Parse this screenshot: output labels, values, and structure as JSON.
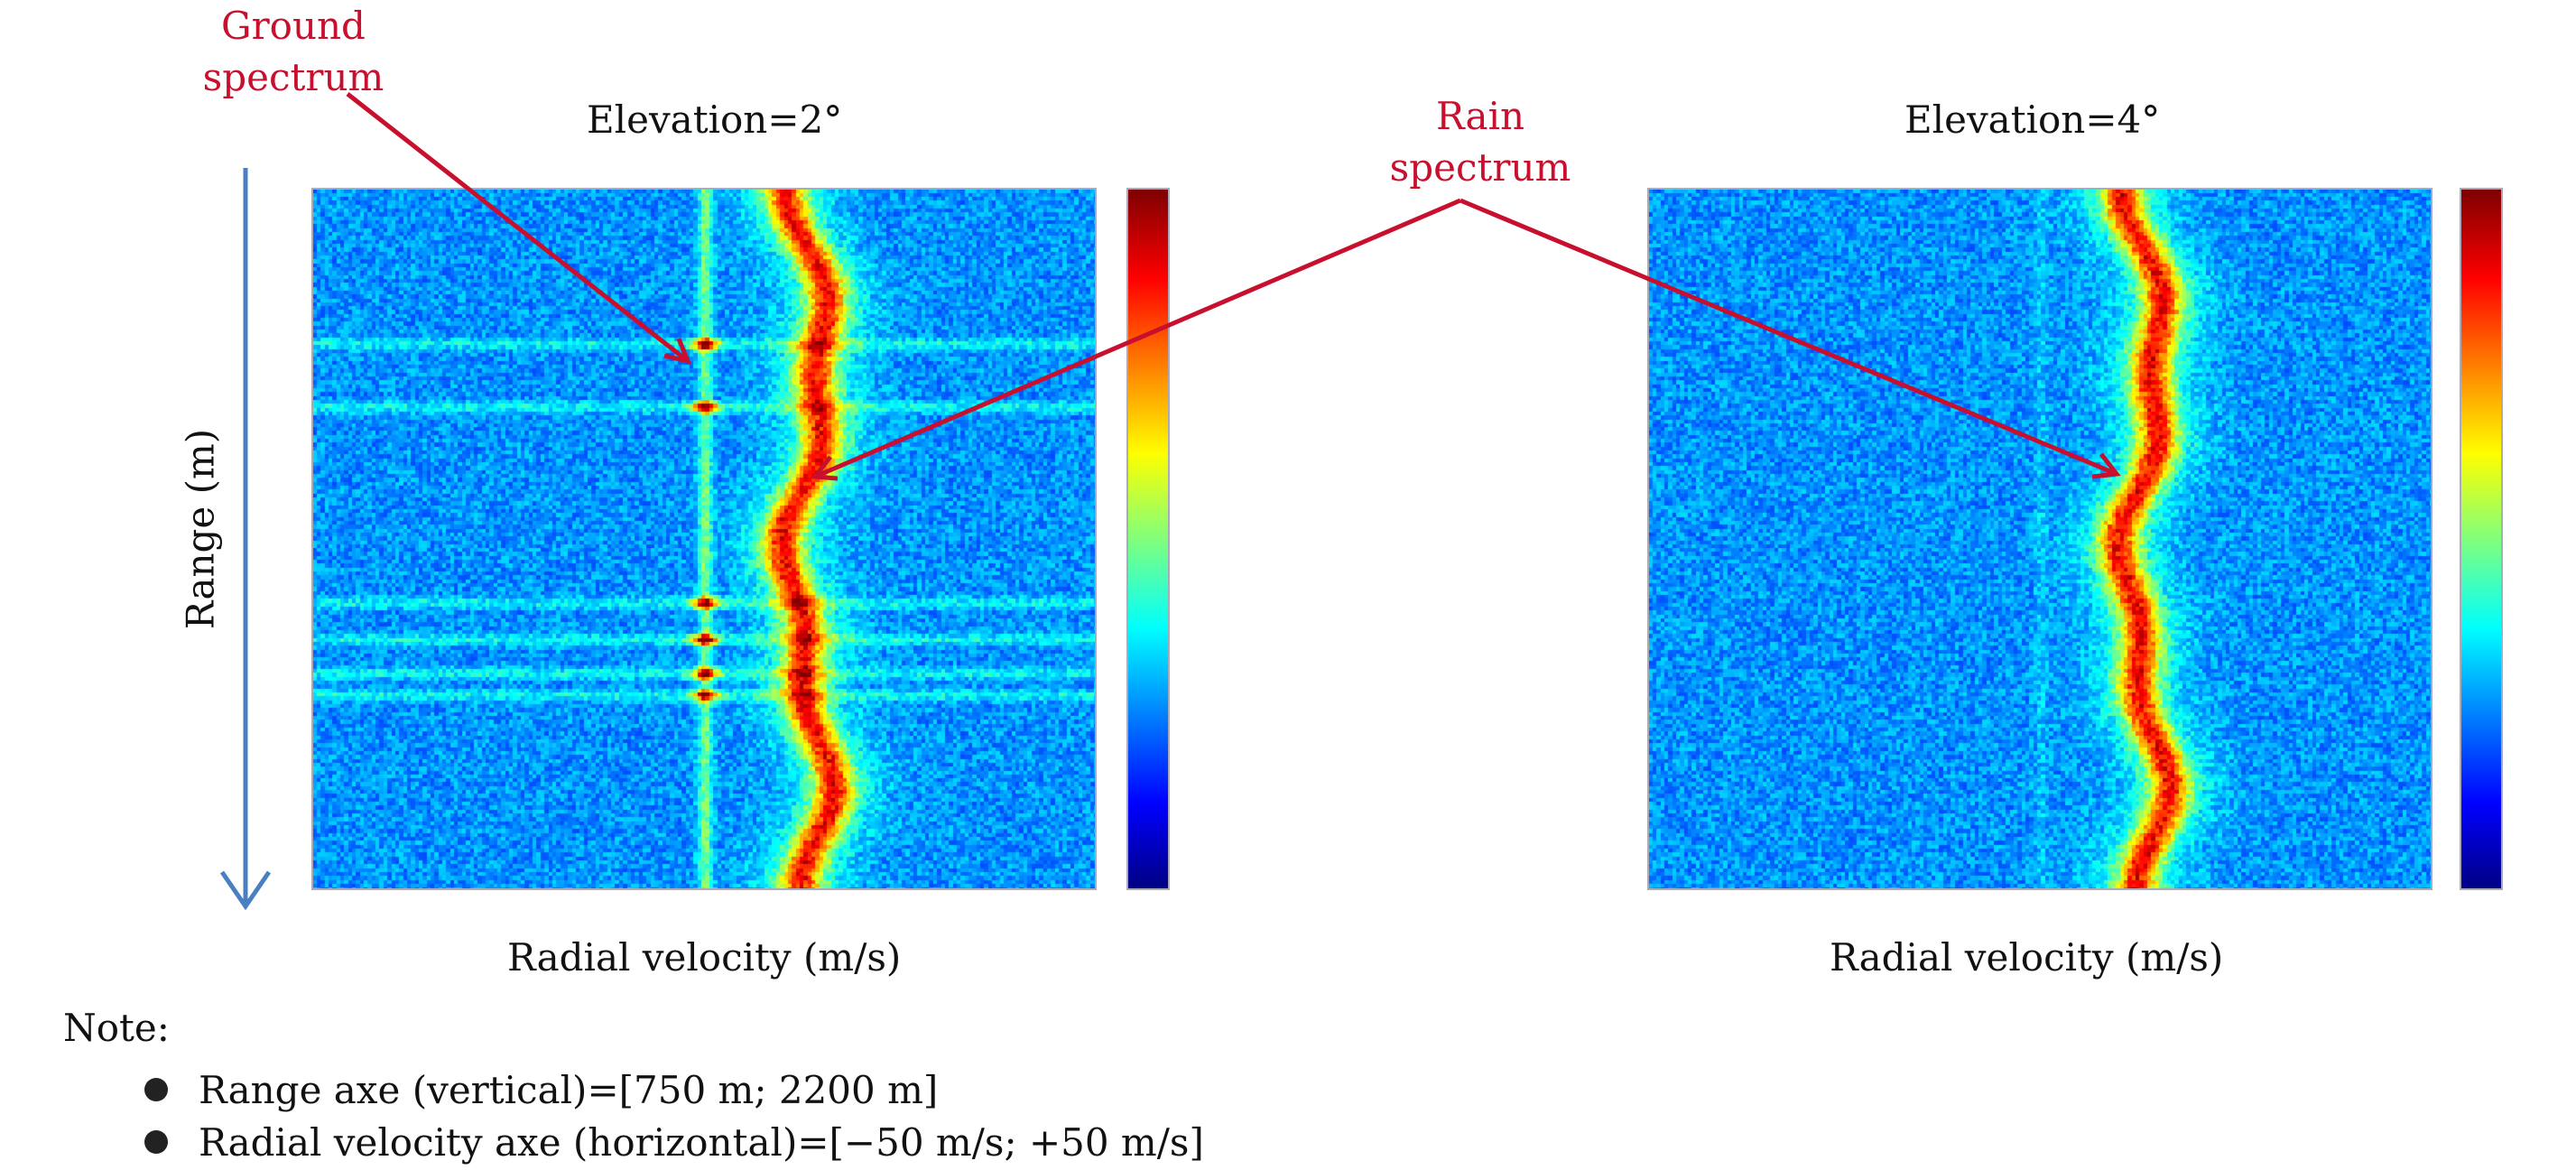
{
  "chart_data": [
    {
      "type": "heatmap",
      "title": "Elevation=2°",
      "xlabel": "Radial velocity (m/s)",
      "ylabel": "Range (m)",
      "xlim": [
        -50,
        50
      ],
      "ylim": [
        750,
        2200
      ],
      "features": {
        "rain_line_velocity_ms": 13,
        "ground_line_velocity_ms": 0,
        "strong_clutter_ranges_m": [
          1070,
          1200,
          1605,
          1680,
          1750,
          1795
        ]
      }
    },
    {
      "type": "heatmap",
      "title": "Elevation=4°",
      "xlabel": "Radial velocity (m/s)",
      "ylabel": "",
      "xlim": [
        -50,
        50
      ],
      "ylim": [
        750,
        2200
      ],
      "features": {
        "rain_line_velocity_ms": 13,
        "ground_line_velocity_ms": 0,
        "strong_clutter_ranges_m": []
      }
    }
  ],
  "annotations": {
    "ground": [
      "Ground",
      "spectrum"
    ],
    "rain": [
      "Rain",
      "spectrum"
    ]
  },
  "range_axis_label": "Range (m)",
  "note": {
    "heading": "Note:",
    "items": [
      "Range axe (vertical)=[750 m; 2200 m]",
      "Radial velocity axe (horizontal)=[−50 m/s; +50 m/s]"
    ]
  },
  "colors": {
    "annotation": "#c8102e",
    "range_arrow": "#4a7fc1",
    "colormap": "jet"
  }
}
